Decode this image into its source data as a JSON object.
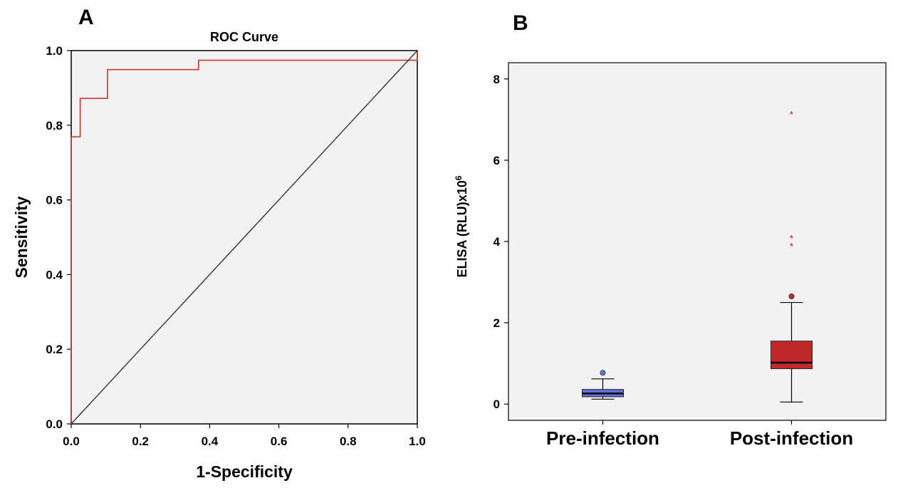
{
  "panels": {
    "a_label": "A",
    "b_label": "B"
  },
  "chart_data": [
    {
      "type": "line",
      "title": "ROC Curve",
      "xlabel": "1-Specificity",
      "ylabel": "Sensitivity",
      "xlim": [
        0,
        1
      ],
      "ylim": [
        0,
        1
      ],
      "xticks": [
        "0.0",
        "0.2",
        "0.4",
        "0.6",
        "0.8",
        "1.0"
      ],
      "yticks": [
        "0.0",
        "0.2",
        "0.4",
        "0.6",
        "0.8",
        "1.0"
      ],
      "grid": false,
      "series": [
        {
          "color": "#c0392b",
          "x": [
            0.0,
            0.0,
            0.026,
            0.026,
            0.105,
            0.105,
            0.368,
            0.368,
            1.0,
            1.0
          ],
          "y": [
            0.0,
            0.769,
            0.769,
            0.872,
            0.872,
            0.949,
            0.949,
            0.974,
            0.974,
            1.0
          ]
        },
        {
          "color": "#333333",
          "x": [
            0.0,
            1.0
          ],
          "y": [
            0.0,
            1.0
          ]
        }
      ]
    },
    {
      "type": "box",
      "ylabel_main": "ELISA (RLU)x10",
      "ylabel_sup": "6",
      "categories": [
        "Pre-infection",
        "Post-infection"
      ],
      "ylim": [
        -0.4,
        8.4
      ],
      "yticks": [
        "0",
        "2",
        "4",
        "6",
        "8"
      ],
      "grid": false,
      "boxes": [
        {
          "color": "#6270d8",
          "whisker_low": 0.12,
          "q1": 0.18,
          "median": 0.26,
          "q3": 0.36,
          "whisker_high": 0.62,
          "outliers": [
            0.77
          ],
          "extremes": []
        },
        {
          "color": "#c0292b",
          "whisker_low": 0.05,
          "q1": 0.87,
          "median": 1.02,
          "q3": 1.55,
          "whisker_high": 2.5,
          "outliers": [
            2.65
          ],
          "extremes": [
            3.9,
            4.1,
            7.15
          ]
        }
      ]
    }
  ]
}
